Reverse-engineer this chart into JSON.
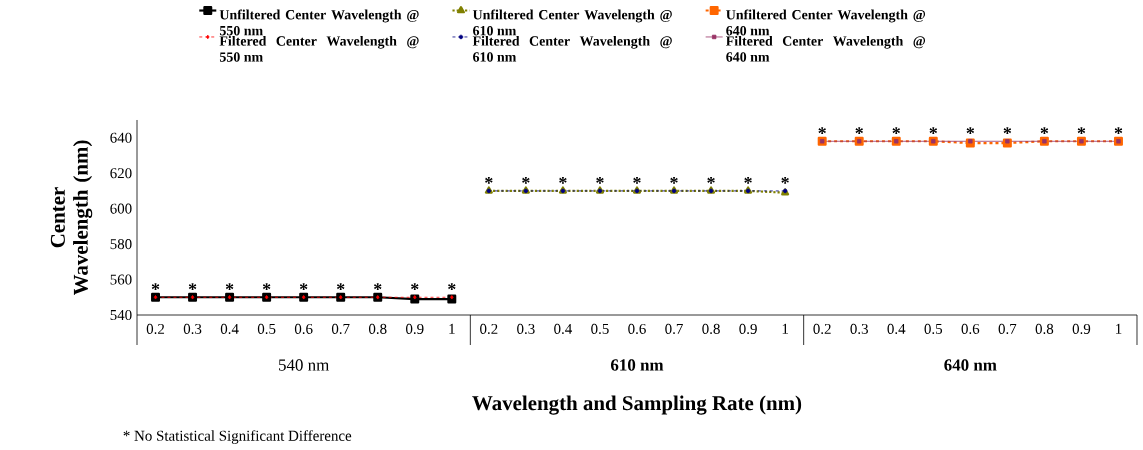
{
  "chart_data": {
    "type": "line",
    "xlabel": "Wavelength and Sampling Rate (nm)",
    "ylabel": "Center Wavelength (nm)",
    "categories": [
      "0.2",
      "0.3",
      "0.4",
      "0.5",
      "0.6",
      "0.7",
      "0.8",
      "0.9",
      "1",
      "0.2",
      "0.3",
      "0.4",
      "0.5",
      "0.6",
      "0.7",
      "0.8",
      "0.9",
      "1",
      "0.2",
      "0.3",
      "0.4",
      "0.5",
      "0.6",
      "0.7",
      "0.8",
      "0.9",
      "1"
    ],
    "ylim": [
      540,
      650
    ],
    "yticks": [
      540,
      560,
      580,
      600,
      620,
      640
    ],
    "grid": false,
    "legend": "top",
    "series": [
      {
        "name": "Unfiltered Center Wavelength @ 550 nm",
        "color": "#000000",
        "marker": "square",
        "line_style": "solid",
        "values": [
          550,
          550,
          550,
          550,
          550,
          550,
          550,
          549,
          549,
          null,
          null,
          null,
          null,
          null,
          null,
          null,
          null,
          null,
          null,
          null,
          null,
          null,
          null,
          null,
          null,
          null,
          null
        ]
      },
      {
        "name": "Unfiltered Center Wavelength @ 610 nm",
        "color": "#808000",
        "marker": "triangle",
        "line_style": "dotted",
        "values": [
          null,
          null,
          null,
          null,
          null,
          null,
          null,
          null,
          null,
          610,
          610,
          610,
          610,
          610,
          610,
          610,
          610,
          609,
          null,
          null,
          null,
          null,
          null,
          null,
          null,
          null,
          null
        ]
      },
      {
        "name": "Unfiltered Center Wavelength @ 640 nm",
        "color": "#ff6600",
        "marker": "square",
        "line_style": "dashed",
        "values": [
          null,
          null,
          null,
          null,
          null,
          null,
          null,
          null,
          null,
          null,
          null,
          null,
          null,
          null,
          null,
          null,
          null,
          null,
          638,
          638,
          638,
          638,
          637,
          637,
          638,
          638,
          638
        ]
      },
      {
        "name": "Filtered Center Wavelength @ 550 nm",
        "color": "#ff0000",
        "marker": "diamond",
        "line_style": "dashed",
        "values": [
          550,
          550,
          550,
          550,
          550,
          550,
          550,
          550,
          550,
          null,
          null,
          null,
          null,
          null,
          null,
          null,
          null,
          null,
          null,
          null,
          null,
          null,
          null,
          null,
          null,
          null,
          null
        ],
        "value_labels": [
          "*",
          "*",
          "*",
          "*",
          "*",
          "*",
          "*",
          "*",
          "*",
          null,
          null,
          null,
          null,
          null,
          null,
          null,
          null,
          null,
          null,
          null,
          null,
          null,
          null,
          null,
          null,
          null,
          null
        ]
      },
      {
        "name": "Filtered Center Wavelength @ 610 nm",
        "color": "#000080",
        "marker": "circle",
        "line_style": "dashed",
        "values": [
          null,
          null,
          null,
          null,
          null,
          null,
          null,
          null,
          null,
          610,
          610,
          610,
          610,
          610,
          610,
          610,
          610,
          610,
          null,
          null,
          null,
          null,
          null,
          null,
          null,
          null,
          null
        ],
        "value_labels": [
          null,
          null,
          null,
          null,
          null,
          null,
          null,
          null,
          null,
          "*",
          "*",
          "*",
          "*",
          "*",
          "*",
          "*",
          "*",
          "*",
          null,
          null,
          null,
          null,
          null,
          null,
          null,
          null,
          null
        ]
      },
      {
        "name": "Filtered Center Wavelength @ 640 nm",
        "color": "#993366",
        "marker": "square",
        "line_style": "solid",
        "values": [
          null,
          null,
          null,
          null,
          null,
          null,
          null,
          null,
          null,
          null,
          null,
          null,
          null,
          null,
          null,
          null,
          null,
          null,
          638,
          638,
          638,
          638,
          638,
          638,
          638,
          638,
          638
        ],
        "value_labels": [
          null,
          null,
          null,
          null,
          null,
          null,
          null,
          null,
          null,
          null,
          null,
          null,
          null,
          null,
          null,
          null,
          null,
          null,
          "*",
          "*",
          "*",
          "*",
          "*",
          "*",
          "*",
          "*",
          "*"
        ]
      }
    ],
    "annotations": [
      "540 nm",
      "610 nm",
      "640 nm",
      "* No Statistical Significant Difference"
    ]
  }
}
